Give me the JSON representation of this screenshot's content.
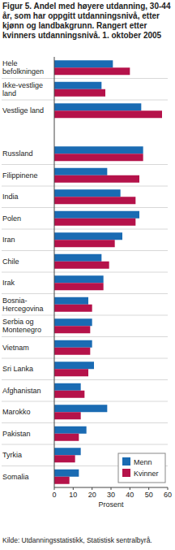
{
  "chart_data": {
    "type": "bar",
    "orientation": "horizontal",
    "title": "Figur 5. Andel med høyere utdanning, 30-44 år, som har oppgitt utdanningsnivå, etter kjønn og landbakgrunn. Rangert etter kvinners utdanningsnivå. 1. oktober 2005",
    "categories": [
      "Hele befolkningen",
      "Ikke-vestlige land",
      "Vestlige land",
      null,
      "Russland",
      "Filippinene",
      "India",
      "Polen",
      "Iran",
      "Chile",
      "Irak",
      "Bosnia-Hercegovina",
      "Serbia og Montenegro",
      "Vietnam",
      "Sri Lanka",
      "Afghanistan",
      "Marokko",
      "Pakistan",
      "Tyrkia",
      "Somalia"
    ],
    "series": [
      {
        "name": "Menn",
        "color": "#1a6bb3",
        "values": [
          31,
          25,
          46,
          null,
          47,
          28,
          35,
          45,
          36,
          25,
          26,
          18,
          20,
          20,
          21,
          14,
          28,
          17,
          14,
          13
        ]
      },
      {
        "name": "Kvinner",
        "color": "#b5124a",
        "values": [
          40,
          27,
          57,
          null,
          47,
          45,
          43,
          43,
          32,
          29,
          26,
          20,
          19,
          19,
          18,
          16,
          14,
          13,
          11,
          8
        ]
      }
    ],
    "xlim": [
      0,
      60
    ],
    "xticks": [
      0,
      10,
      20,
      30,
      40,
      50,
      60
    ],
    "xlabel": "Prosent",
    "source": "Kilde: Utdanningsstatistikk, Statistisk sentralbyrå.",
    "legend": "lower right",
    "grid": false
  }
}
